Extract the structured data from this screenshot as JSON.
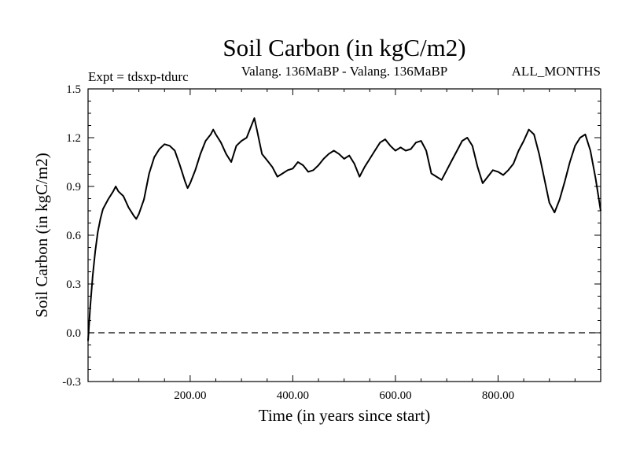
{
  "chart_data": {
    "type": "line",
    "title": "Soil Carbon (in kgC/m2)",
    "subtitle": "Valang. 136MaBP - Valang.  136MaBP",
    "experiment": "Expt = tdsxp-tdurc",
    "months": "ALL_MONTHS",
    "xlabel": "Time (in years since start)",
    "ylabel": "Soil Carbon (in kgC/m2)",
    "xlim": [
      1,
      1000
    ],
    "ylim": [
      -0.3,
      1.5
    ],
    "xticks": [
      200,
      400,
      600,
      800
    ],
    "xtick_labels": [
      "200.00",
      "400.00",
      "600.00",
      "800.00"
    ],
    "yticks": [
      -0.3,
      0.0,
      0.3,
      0.6,
      0.9,
      1.2,
      1.5
    ],
    "ytick_labels": [
      "-0.3",
      "0.0",
      "0.3",
      "0.6",
      "0.9",
      "1.2",
      "1.5"
    ],
    "reference_line": {
      "y": 0.0,
      "style": "dashed"
    },
    "series": [
      {
        "name": "Soil Carbon",
        "color": "#000000",
        "x": [
          1,
          5,
          10,
          15,
          20,
          25,
          30,
          40,
          50,
          55,
          60,
          70,
          80,
          90,
          95,
          100,
          110,
          120,
          130,
          140,
          150,
          160,
          170,
          180,
          190,
          195,
          200,
          210,
          220,
          230,
          240,
          245,
          250,
          260,
          270,
          280,
          290,
          300,
          310,
          320,
          325,
          330,
          340,
          350,
          360,
          370,
          380,
          390,
          400,
          410,
          420,
          430,
          440,
          450,
          460,
          470,
          480,
          490,
          500,
          510,
          520,
          530,
          540,
          550,
          560,
          570,
          580,
          590,
          600,
          610,
          620,
          630,
          640,
          650,
          660,
          670,
          680,
          690,
          700,
          710,
          720,
          730,
          740,
          750,
          760,
          770,
          780,
          790,
          800,
          810,
          820,
          830,
          840,
          850,
          860,
          870,
          880,
          890,
          900,
          910,
          920,
          930,
          940,
          950,
          960,
          970,
          980,
          990,
          1000
        ],
        "y": [
          -0.05,
          0.15,
          0.35,
          0.5,
          0.62,
          0.7,
          0.76,
          0.82,
          0.87,
          0.9,
          0.87,
          0.84,
          0.77,
          0.72,
          0.7,
          0.73,
          0.82,
          0.98,
          1.08,
          1.13,
          1.16,
          1.15,
          1.12,
          1.03,
          0.93,
          0.89,
          0.92,
          1.0,
          1.1,
          1.18,
          1.22,
          1.25,
          1.22,
          1.17,
          1.1,
          1.05,
          1.15,
          1.18,
          1.2,
          1.28,
          1.32,
          1.25,
          1.1,
          1.06,
          1.02,
          0.96,
          0.98,
          1.0,
          1.01,
          1.05,
          1.03,
          0.99,
          1.0,
          1.03,
          1.07,
          1.1,
          1.12,
          1.1,
          1.07,
          1.09,
          1.04,
          0.96,
          1.02,
          1.07,
          1.12,
          1.17,
          1.19,
          1.15,
          1.12,
          1.14,
          1.12,
          1.13,
          1.17,
          1.18,
          1.12,
          0.98,
          0.96,
          0.94,
          1.0,
          1.06,
          1.12,
          1.18,
          1.2,
          1.15,
          1.02,
          0.92,
          0.96,
          1.0,
          0.99,
          0.97,
          1.0,
          1.04,
          1.12,
          1.18,
          1.25,
          1.22,
          1.1,
          0.95,
          0.8,
          0.74,
          0.82,
          0.93,
          1.05,
          1.15,
          1.2,
          1.22,
          1.12,
          0.95,
          0.75
        ]
      }
    ]
  }
}
